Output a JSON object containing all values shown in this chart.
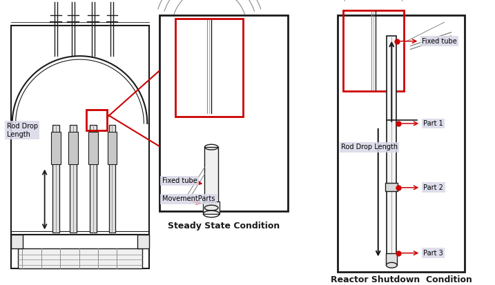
{
  "bg_color": "#ffffff",
  "line_color": "#1a1a1a",
  "gray_color": "#888888",
  "light_gray": "#cccccc",
  "red_color": "#cc0000",
  "label_bg": "#d8d8e8",
  "title1": "Steady State Condition",
  "title2": "Reactor Shutdown  Condition",
  "label_fixed_tube_steady": "Fixed tube",
  "label_movement_parts": "MovementParts",
  "label_rod_drop_left": "Rod Drop\nLength",
  "label_rod_drop_right": "Rod Drop Length",
  "label_fixed_tube_right": "Fixed tube",
  "label_part1": "Part 1",
  "label_part2": "Part 2",
  "label_part3": "Part 3"
}
